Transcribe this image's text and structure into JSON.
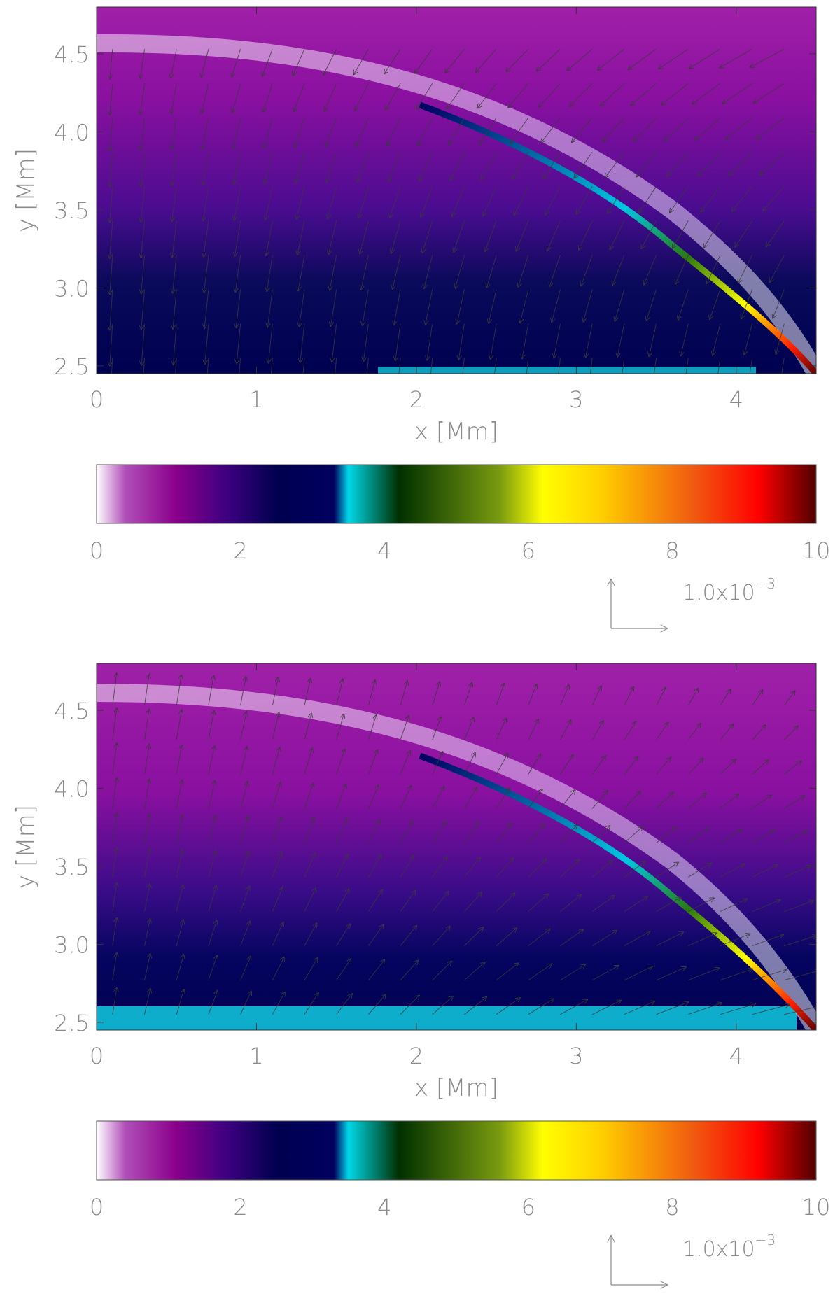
{
  "chart_data": [
    {
      "type": "heatmap",
      "panel": "top",
      "xlabel": "x [Mm]",
      "ylabel": "y [Mm]",
      "xlim": [
        0,
        4.5
      ],
      "ylim": [
        2.45,
        4.8
      ],
      "xticks": [
        "0",
        "1",
        "2",
        "3",
        "4"
      ],
      "yticks": [
        "2.5",
        "3.0",
        "3.5",
        "4.0",
        "4.5"
      ],
      "vector_direction": "down",
      "colorbar": {
        "range": [
          0,
          10
        ],
        "ticks": [
          "0",
          "2",
          "4",
          "6",
          "8",
          "10"
        ],
        "colors": [
          "#ffffff",
          "#b04fb8",
          "#8b008b",
          "#3d0080",
          "#000050",
          "#000060",
          "#00d8e8",
          "#003000",
          "#7a9a10",
          "#ffff00",
          "#ffd000",
          "#f05a10",
          "#ff0000",
          "#500000"
        ]
      },
      "reference_vector": {
        "label_base": "1.0x10",
        "label_exp": "−3"
      }
    },
    {
      "type": "heatmap",
      "panel": "bottom",
      "xlabel": "x [Mm]",
      "ylabel": "y [Mm]",
      "xlim": [
        0,
        4.5
      ],
      "ylim": [
        2.45,
        4.8
      ],
      "xticks": [
        "0",
        "1",
        "2",
        "3",
        "4"
      ],
      "yticks": [
        "2.5",
        "3.0",
        "3.5",
        "4.0",
        "4.5"
      ],
      "vector_direction": "up",
      "colorbar": {
        "range": [
          0,
          10
        ],
        "ticks": [
          "0",
          "2",
          "4",
          "6",
          "8",
          "10"
        ],
        "colors": [
          "#ffffff",
          "#b04fb8",
          "#8b008b",
          "#3d0080",
          "#000050",
          "#000060",
          "#00d8e8",
          "#003000",
          "#7a9a10",
          "#ffff00",
          "#ffd000",
          "#f05a10",
          "#ff0000",
          "#500000"
        ]
      },
      "reference_vector": {
        "label_base": "1.0x10",
        "label_exp": "−3"
      }
    }
  ],
  "colors": {
    "field_top": "#9a18a2",
    "field_mid": "#3a0a8a",
    "field_low": "#000050",
    "cyan_band": "#10c0d8",
    "arrow": "#3a3a3a",
    "text": "#8a8a8a"
  }
}
